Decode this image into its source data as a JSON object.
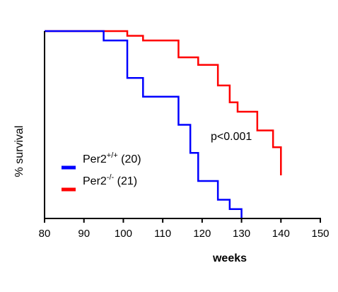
{
  "chart_data": {
    "type": "line",
    "step": true,
    "xlabel": "weeks",
    "ylabel": "% survival",
    "xlim": [
      80,
      150
    ],
    "ylim": [
      0,
      100
    ],
    "x_ticks": [
      80,
      90,
      100,
      110,
      120,
      130,
      140,
      150
    ],
    "x_tick_labels": [
      "80",
      "90",
      "100",
      "110",
      "120",
      "130",
      "140",
      "150"
    ],
    "y_ticks_shown": false,
    "grid": false,
    "legend_position": "left",
    "annotation": "p<0.001",
    "series": [
      {
        "name": "Per2+/+ (20)",
        "legend": {
          "base": "Per2",
          "sup": "+/+",
          "rest": " (20)"
        },
        "color": "#0000ff",
        "x": [
          80,
          95,
          101,
          105,
          114,
          117,
          119,
          124,
          127,
          130
        ],
        "y": [
          100,
          95,
          75,
          65,
          50,
          35,
          20,
          10,
          5,
          0
        ]
      },
      {
        "name": "Per2-/- (21)",
        "legend": {
          "base": "Per2",
          "sup": "-/-",
          "rest": " (21)"
        },
        "color": "#ff0000",
        "x": [
          80,
          101,
          105,
          114,
          119,
          124,
          127,
          129,
          134,
          138,
          140
        ],
        "y": [
          100,
          97.5,
          95,
          86,
          82,
          71,
          62,
          57,
          47,
          38,
          23
        ]
      }
    ]
  }
}
